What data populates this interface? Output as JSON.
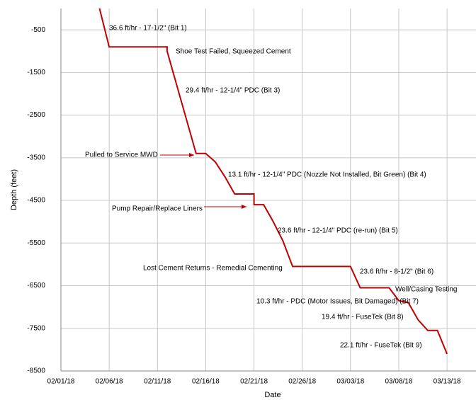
{
  "chart_data": {
    "type": "line",
    "x_label": "Date",
    "y_label": "Depth (feet)",
    "color": "#c00000",
    "grid": true,
    "x": [
      "02/05/18",
      "02/06/18",
      "02/12/18",
      "02/12/18",
      "02/14/18",
      "02/15/18",
      "02/16/18",
      "02/17/18",
      "02/18/18",
      "02/19/18",
      "02/21/18",
      "02/21/18",
      "02/22/18",
      "02/23/18",
      "02/24/18",
      "02/25/18",
      "03/03/18",
      "03/04/18",
      "03/07/18",
      "03/08/18",
      "03/09/18",
      "03/10/18",
      "03/11/18",
      "03/12/18",
      "03/13/18"
    ],
    "values": [
      0,
      -900,
      -900,
      -1000,
      -2600,
      -3400,
      -3400,
      -3600,
      -3950,
      -4350,
      -4350,
      -4600,
      -4600,
      -5000,
      -5450,
      -6050,
      -6050,
      -6550,
      -6550,
      -6850,
      -6900,
      -7300,
      -7550,
      -7550,
      -8100
    ],
    "xlim": [
      "02/01/18",
      "03/16/18"
    ],
    "xticks": [
      "02/01/18",
      "02/06/18",
      "02/11/18",
      "02/16/18",
      "02/21/18",
      "02/26/18",
      "03/03/18",
      "03/08/18",
      "03/13/18"
    ],
    "ylim": [
      -8500,
      0
    ],
    "yticks": [
      -8500,
      -7500,
      -6500,
      -5500,
      -4500,
      -3500,
      -2500,
      -1500,
      -500
    ],
    "annotations": [
      "36.6 ft/hr - 17-1/2\" (Bit 1)",
      "Shoe Test Failed, Squeezed Cement",
      "29.4 ft/hr - 12-1/4” PDC (Bit 3)",
      "Pulled to Service MWD",
      "13.1 ft/hr - 12-1/4\" PDC (Nozzle Not Installed, Bit Green) (Bit 4)",
      "Pump Repair/Replace Liners",
      "23.6 ft/hr - 12-1/4\" PDC (re-run) (Bit 5)",
      "Lost Cement Returns - Remedial Cementing",
      "23.6 ft/hr - 8-1/2\" (Bit 6)",
      "Well/Casing Testing",
      "10.3 ft/hr - PDC (Motor Issues, Bit Damaged) (Bit 7)",
      "19.4 ft/hr - FuseTek (Bit 8)",
      "22.1 ft/hr - FuseTek (Bit 9)"
    ]
  }
}
